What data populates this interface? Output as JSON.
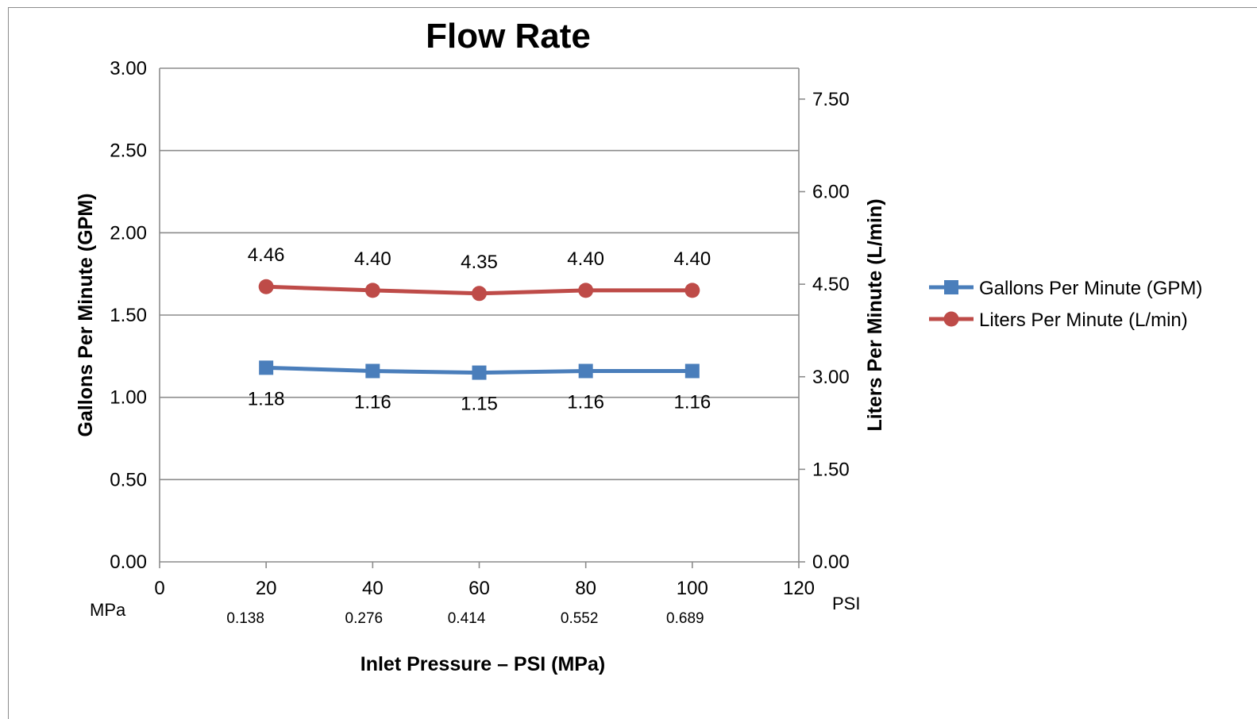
{
  "chart_data": {
    "type": "line",
    "title": "Flow Rate",
    "xlabel": "Inlet Pressure – PSI (MPa)",
    "ylabel": "Gallons Per Minute (GPM)",
    "y2label": "Liters Per Minute (L/min)",
    "x_unit_label": "PSI",
    "x_secondary_unit_label": "MPa",
    "xlim": [
      0,
      120
    ],
    "ylim": [
      0,
      3
    ],
    "y2lim": [
      0,
      8
    ],
    "x_ticks": [
      "0",
      "20",
      "40",
      "60",
      "80",
      "100",
      "120"
    ],
    "y_ticks": [
      "0.00",
      "0.50",
      "1.00",
      "1.50",
      "2.00",
      "2.50",
      "3.00"
    ],
    "y2_ticks": [
      "0.00",
      "1.50",
      "3.00",
      "4.50",
      "6.00",
      "7.50"
    ],
    "mpa_labels": [
      "0.138",
      "0.276",
      "0.414",
      "0.552",
      "0.689"
    ],
    "x": [
      20,
      40,
      60,
      80,
      100
    ],
    "grid": true,
    "legend_position": "right",
    "series": [
      {
        "name": "Gallons Per Minute (GPM)",
        "axis": "left",
        "color": "#4a7ebb",
        "marker": "square",
        "values": [
          1.18,
          1.16,
          1.15,
          1.16,
          1.16
        ],
        "labels": [
          "1.18",
          "1.16",
          "1.15",
          "1.16",
          "1.16"
        ]
      },
      {
        "name": "Liters Per Minute (L/min)",
        "axis": "right",
        "color": "#be4b48",
        "marker": "circle",
        "values": [
          4.46,
          4.4,
          4.35,
          4.4,
          4.4
        ],
        "labels": [
          "4.46",
          "4.40",
          "4.35",
          "4.40",
          "4.40"
        ]
      }
    ]
  }
}
